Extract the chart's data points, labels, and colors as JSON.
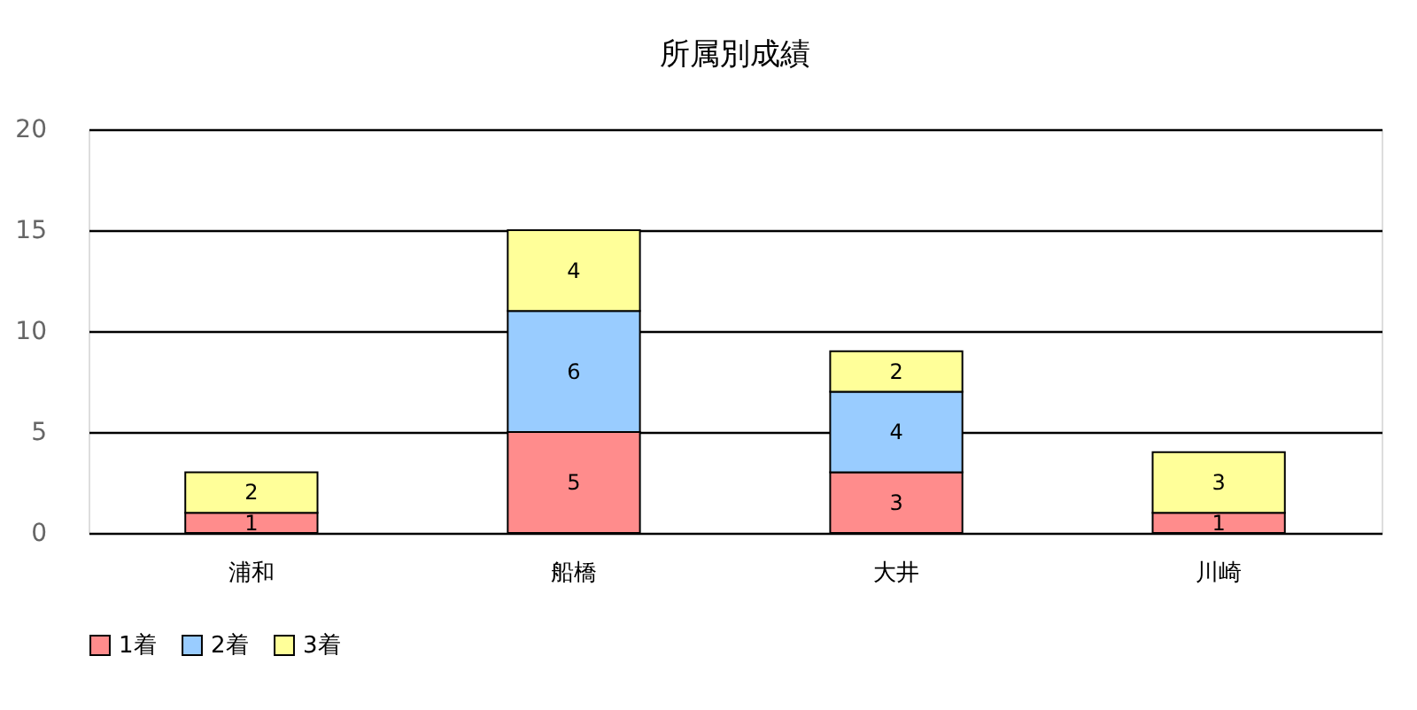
{
  "chart_data": {
    "type": "bar",
    "stacked": true,
    "title": "所属別成績",
    "categories": [
      "浦和",
      "船橋",
      "大井",
      "川崎"
    ],
    "series": [
      {
        "name": "1着",
        "color": "#ff8c8c",
        "values": [
          1,
          5,
          3,
          1
        ]
      },
      {
        "name": "2着",
        "color": "#99ccff",
        "values": [
          null,
          6,
          4,
          null
        ]
      },
      {
        "name": "3着",
        "color": "#ffff99",
        "values": [
          2,
          4,
          2,
          3
        ]
      }
    ],
    "ylim": [
      0,
      20
    ],
    "yticks": [
      0,
      5,
      10,
      15,
      20
    ],
    "grid": "y",
    "legend": "bottom",
    "data_labels": true
  }
}
